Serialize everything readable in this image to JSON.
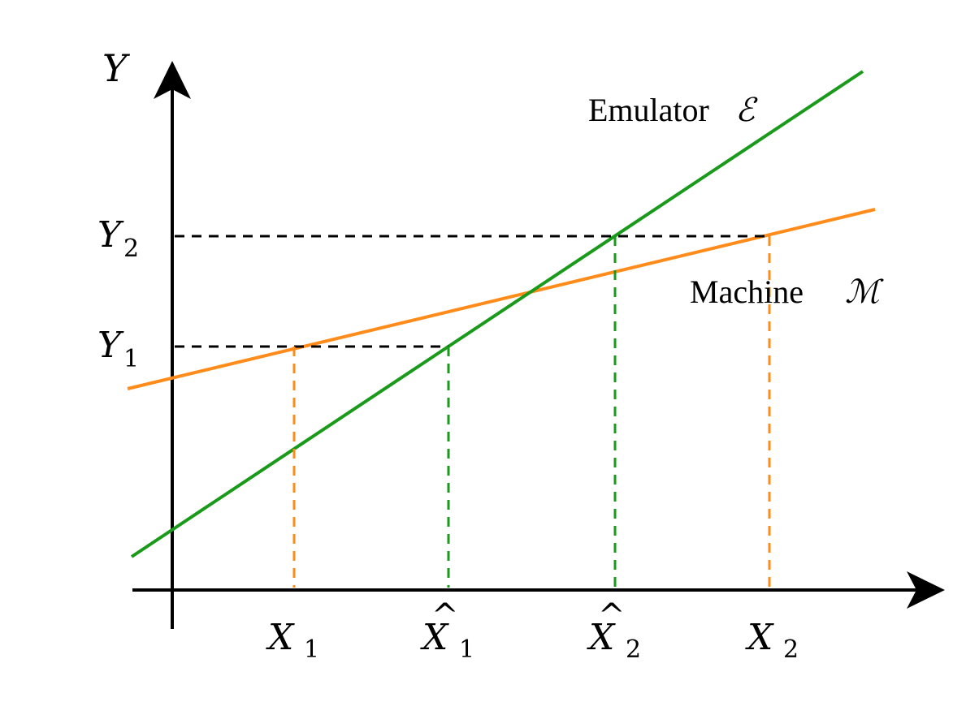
{
  "axes": {
    "y_label": "Y",
    "x_arrow": true,
    "y_arrow": true
  },
  "lines": {
    "emulator": {
      "label": "Emulator",
      "symbol": "ℰ",
      "color": "#1a9a1a"
    },
    "machine": {
      "label": "Machine",
      "symbol": "ℳ",
      "color": "#ff8c1a"
    }
  },
  "y_ticks": {
    "y1": {
      "base": "Y",
      "sub": "1"
    },
    "y2": {
      "base": "Y",
      "sub": "2"
    }
  },
  "x_ticks": {
    "x1": {
      "base": "X",
      "sub": "1"
    },
    "xhat1": {
      "base": "X",
      "sub": "1",
      "hat": "^"
    },
    "xhat2": {
      "base": "X",
      "sub": "2",
      "hat": "^"
    },
    "x2": {
      "base": "X",
      "sub": "2"
    }
  },
  "colors": {
    "axis": "#000000",
    "emulator": "#1a9a1a",
    "machine": "#ff8c1a",
    "guide_black": "#000000"
  }
}
